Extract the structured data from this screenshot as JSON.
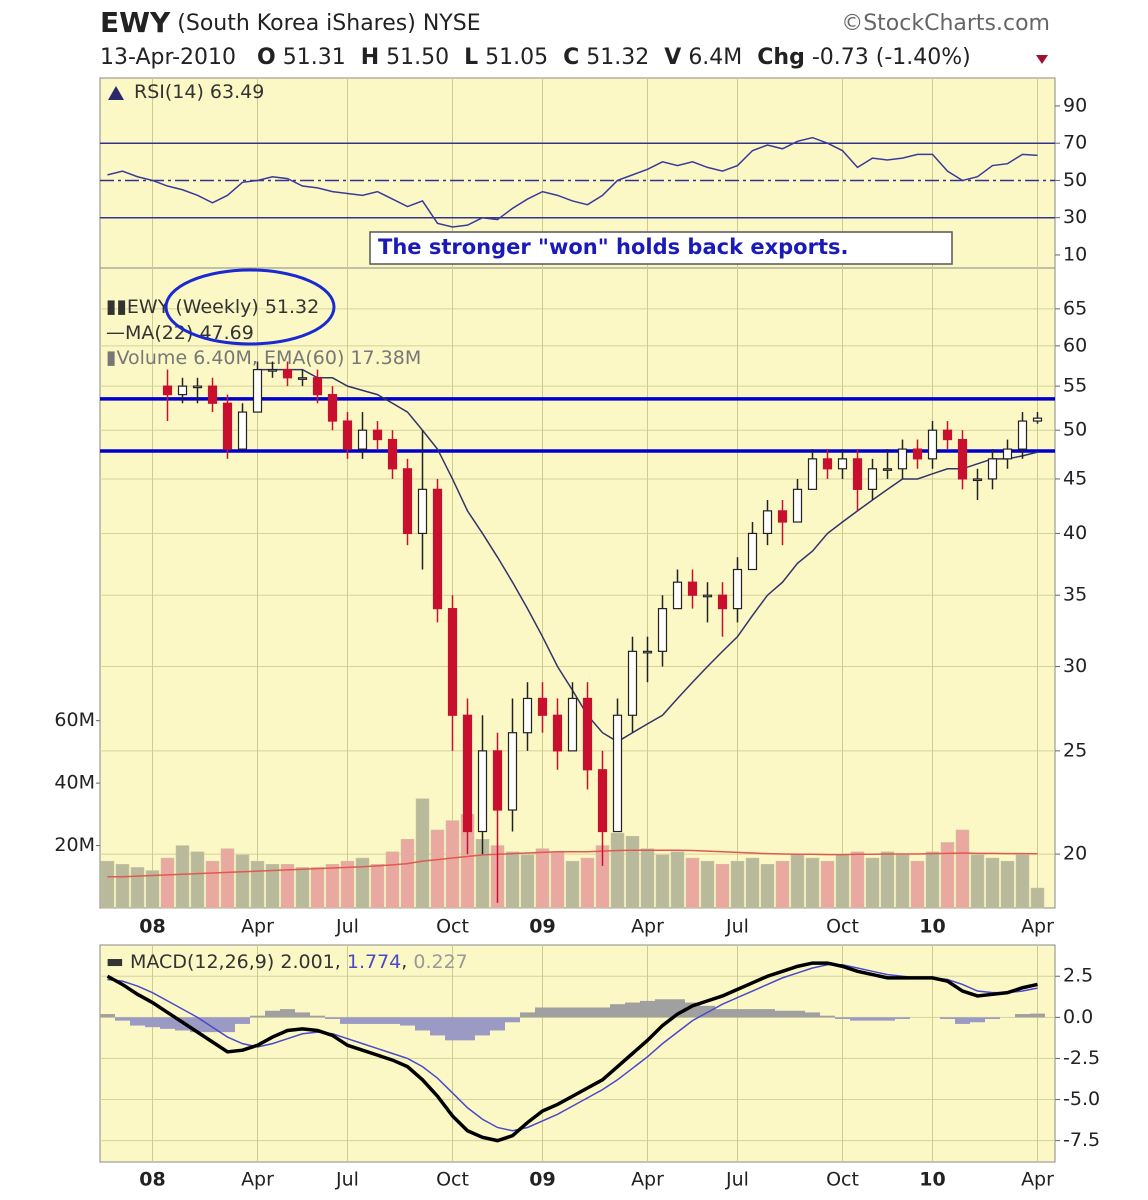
{
  "header": {
    "symbol": "EWY",
    "name": "(South Korea iShares)",
    "exchange": "NYSE",
    "source": "©StockCharts.com",
    "date": "13-Apr-2010",
    "quote": [
      [
        "O",
        "51.31"
      ],
      [
        "H",
        "51.50"
      ],
      [
        "L",
        "51.05"
      ],
      [
        "C",
        "51.32"
      ],
      [
        "V",
        "6.4M"
      ],
      [
        "Chg",
        "-0.73 (-1.40%)"
      ]
    ]
  },
  "chart_data": [
    {
      "type": "line",
      "label": "RSI(14)",
      "color": "#3a3a9a",
      "level_color": "#33338f",
      "annotation": "The stronger \"won\" holds back exports.",
      "values": [
        53,
        55,
        52,
        50,
        47,
        45,
        42,
        38,
        42,
        49,
        50,
        52,
        51,
        47,
        46,
        44,
        43,
        42,
        44,
        40,
        36,
        39,
        27,
        25,
        26,
        30,
        29,
        35,
        40,
        44,
        42,
        39,
        37,
        42,
        50,
        53,
        56,
        60,
        58,
        60,
        57,
        55,
        58,
        66,
        69,
        67,
        71,
        73,
        70,
        66,
        57,
        62,
        61,
        62,
        64,
        64,
        55,
        50,
        52,
        58,
        59,
        64,
        63.49
      ],
      "ylim": [
        3,
        105
      ],
      "yticks": [
        90,
        70,
        50,
        30,
        10
      ],
      "levels": [
        70,
        50,
        30
      ]
    },
    {
      "type": "candlestick",
      "label": "EWY",
      "period": "(Weekly)",
      "log": true,
      "grid": true,
      "up_color": "#ffffff",
      "down_color": "#c8102e",
      "categories": [
        null,
        null,
        null,
        "08",
        null,
        null,
        null,
        null,
        null,
        null,
        "Apr",
        null,
        null,
        null,
        null,
        null,
        "Jul",
        null,
        null,
        null,
        null,
        null,
        null,
        "Oct",
        null,
        null,
        null,
        null,
        null,
        "09",
        null,
        null,
        null,
        null,
        null,
        null,
        "Apr",
        null,
        null,
        null,
        null,
        null,
        "Jul",
        null,
        null,
        null,
        null,
        null,
        null,
        "Oct",
        null,
        null,
        null,
        null,
        null,
        "10",
        null,
        null,
        null,
        null,
        null,
        null,
        "Apr"
      ],
      "open": [
        null,
        null,
        null,
        null,
        55,
        54,
        55,
        55,
        53,
        48,
        52,
        57,
        57,
        56,
        56,
        54,
        51,
        48,
        50,
        49,
        46,
        40,
        44,
        34,
        27,
        21,
        25,
        22,
        26,
        28,
        27,
        25,
        28,
        24,
        21,
        27,
        31,
        31,
        34,
        36,
        35,
        35,
        34,
        37,
        40,
        42,
        41,
        44,
        47,
        46,
        47,
        44,
        46,
        46,
        48,
        47,
        50,
        49,
        45,
        45,
        47,
        48,
        51
      ],
      "high": [
        null,
        null,
        null,
        null,
        57,
        56,
        56,
        56,
        54,
        53,
        58,
        58,
        58,
        57,
        57,
        55,
        52,
        52,
        51,
        50,
        47,
        50,
        45,
        35,
        28,
        27,
        26,
        28,
        29,
        29,
        28,
        29,
        29,
        25,
        28,
        32,
        32,
        35,
        37,
        37,
        36,
        36,
        38,
        41,
        43,
        43,
        45,
        48,
        48,
        48,
        48,
        47,
        48,
        49,
        49,
        51,
        51,
        50,
        46,
        48,
        49,
        52,
        52
      ],
      "low": [
        null,
        null,
        null,
        null,
        51,
        53,
        53,
        52,
        47,
        48,
        52,
        56,
        55,
        55,
        53,
        50,
        47,
        47,
        48,
        45,
        39,
        37,
        33,
        25,
        20,
        20,
        18,
        21,
        25,
        26,
        24,
        25,
        23,
        19.5,
        21,
        26,
        29,
        30,
        34,
        34,
        33,
        32,
        33,
        37,
        39,
        39,
        41,
        44,
        45,
        45,
        42,
        43,
        45,
        45,
        46,
        46,
        48,
        44,
        43,
        44,
        46,
        47,
        50.7
      ],
      "close": [
        null,
        null,
        null,
        null,
        54,
        55,
        55,
        53,
        48,
        52,
        57,
        57,
        56,
        56,
        54,
        51,
        48,
        50,
        49,
        46,
        40,
        44,
        34,
        27,
        21,
        25,
        22,
        26,
        28,
        27,
        25,
        28,
        24,
        21,
        27,
        31,
        31,
        34,
        36,
        35,
        35,
        34,
        37,
        40,
        42,
        41,
        44,
        47,
        46,
        47,
        44,
        46,
        46,
        48,
        47,
        50,
        49,
        45,
        45,
        47,
        48,
        51,
        51.32
      ],
      "ma": {
        "name": "MA(22)",
        "color": "#33336a",
        "values": [
          null,
          null,
          null,
          null,
          null,
          null,
          null,
          null,
          null,
          null,
          57,
          57,
          57,
          57,
          56,
          56,
          55,
          54.5,
          54,
          53,
          52,
          50,
          48,
          45,
          42,
          40,
          38,
          36,
          34,
          32,
          30,
          28.5,
          27,
          26,
          25.5,
          26,
          26.5,
          27,
          28,
          29,
          30,
          31,
          32,
          33.5,
          35,
          36,
          37.5,
          38.5,
          40,
          41,
          42,
          43,
          44,
          45,
          45,
          45.5,
          46,
          46,
          46.5,
          47,
          47,
          47.3,
          47.69
        ]
      },
      "volume": {
        "name": "Volume",
        "legend_value": "6.40M",
        "up_color": "#b9b99c",
        "down_color": "#eaa9a0",
        "values": [
          15,
          14,
          13,
          12,
          16,
          20,
          18,
          15,
          19,
          17,
          15,
          14,
          14,
          13,
          13,
          14,
          15,
          16,
          14,
          18,
          22,
          35,
          25,
          28,
          30,
          22,
          20,
          18,
          17,
          19,
          18,
          15,
          16,
          20,
          24,
          23,
          19,
          17,
          18,
          16,
          15,
          14,
          15,
          16,
          14,
          15,
          17,
          16,
          15,
          17,
          18,
          16,
          18,
          17,
          15,
          18,
          21,
          25,
          17,
          16,
          15,
          17,
          6.4
        ],
        "ema": {
          "name": "EMA(60)",
          "legend_value": "17.38M",
          "color": "#e05a50",
          "values": [
            10,
            10,
            10.2,
            10.4,
            10.6,
            10.8,
            11,
            11.2,
            11.4,
            11.6,
            11.8,
            12,
            12.2,
            12.4,
            12.6,
            12.8,
            13,
            13.2,
            13.5,
            13.8,
            14.2,
            15,
            15.5,
            16,
            16.5,
            17,
            17.2,
            17.4,
            17.6,
            17.8,
            18,
            18,
            18,
            18.2,
            18.4,
            18.5,
            18.5,
            18.5,
            18.5,
            18.4,
            18.2,
            18,
            17.8,
            17.6,
            17.4,
            17.3,
            17.2,
            17.2,
            17.1,
            17.1,
            17.2,
            17.2,
            17.3,
            17.3,
            17.3,
            17.4,
            17.5,
            17.6,
            17.5,
            17.5,
            17.4,
            17.4,
            17.38
          ]
        }
      },
      "ylim": [
        17.8,
        71
      ],
      "yticks": [
        20,
        25,
        30,
        35,
        40,
        45,
        50,
        55,
        60,
        65
      ],
      "vlim": [
        0,
        205
      ],
      "vticks": [
        {
          "value": 20,
          "label": "20M"
        },
        {
          "value": 40,
          "label": "40M"
        },
        {
          "value": 60,
          "label": "60M"
        }
      ],
      "hlines": [
        53.5,
        47.8
      ],
      "hline_color": "#0000cc"
    },
    {
      "type": "macd",
      "grid": true,
      "macd": {
        "name": "MACD(12,26,9)",
        "color": "#000000",
        "values": [
          2.5,
          2.0,
          1.4,
          0.9,
          0.3,
          -0.3,
          -0.9,
          -1.5,
          -2.1,
          -2.0,
          -1.7,
          -1.2,
          -0.8,
          -0.7,
          -0.8,
          -1.1,
          -1.7,
          -2.0,
          -2.3,
          -2.6,
          -3.0,
          -3.8,
          -4.8,
          -6.0,
          -6.9,
          -7.3,
          -7.5,
          -7.2,
          -6.4,
          -5.7,
          -5.3,
          -4.8,
          -4.3,
          -3.8,
          -3.0,
          -2.2,
          -1.4,
          -0.5,
          0.2,
          0.7,
          1.0,
          1.3,
          1.7,
          2.1,
          2.5,
          2.8,
          3.1,
          3.3,
          3.3,
          3.1,
          2.8,
          2.6,
          2.4,
          2.4,
          2.4,
          2.4,
          2.2,
          1.6,
          1.3,
          1.4,
          1.5,
          1.8,
          2.001
        ]
      },
      "signal": {
        "color": "#4a4ac8",
        "values": [
          2.3,
          2.2,
          1.9,
          1.5,
          1.0,
          0.5,
          0,
          -0.6,
          -1.2,
          -1.6,
          -1.8,
          -1.6,
          -1.3,
          -1.0,
          -0.9,
          -1.0,
          -1.3,
          -1.6,
          -1.9,
          -2.2,
          -2.5,
          -3.0,
          -3.7,
          -4.6,
          -5.5,
          -6.2,
          -6.7,
          -6.9,
          -6.7,
          -6.3,
          -5.9,
          -5.4,
          -4.9,
          -4.4,
          -3.8,
          -3.1,
          -2.4,
          -1.6,
          -0.9,
          -0.2,
          0.3,
          0.8,
          1.2,
          1.6,
          2.0,
          2.4,
          2.7,
          3.0,
          3.2,
          3.2,
          3.0,
          2.8,
          2.6,
          2.5,
          2.4,
          2.4,
          2.3,
          2.0,
          1.6,
          1.5,
          1.5,
          1.6,
          1.774
        ]
      },
      "histogram": {
        "color": "#9a9ac4",
        "up_color": "#a0a0a0",
        "values": [
          0.2,
          -0.2,
          -0.5,
          -0.6,
          -0.7,
          -0.8,
          -0.9,
          -0.9,
          -0.9,
          -0.4,
          0.1,
          0.4,
          0.5,
          0.3,
          0.1,
          -0.1,
          -0.4,
          -0.4,
          -0.4,
          -0.4,
          -0.5,
          -0.8,
          -1.1,
          -1.4,
          -1.4,
          -1.1,
          -0.8,
          -0.3,
          0.3,
          0.6,
          0.6,
          0.6,
          0.6,
          0.6,
          0.8,
          0.9,
          1.0,
          1.1,
          1.1,
          0.9,
          0.7,
          0.5,
          0.5,
          0.5,
          0.5,
          0.4,
          0.4,
          0.3,
          0.1,
          -0.1,
          -0.2,
          -0.2,
          -0.2,
          -0.1,
          0,
          0,
          -0.1,
          -0.4,
          -0.3,
          -0.1,
          0,
          0.2,
          0.227
        ]
      },
      "ylim": [
        -8.8,
        4.4
      ],
      "yticks": [
        2.5,
        {
          "value": 0,
          "label": "0.0"
        },
        -2.5,
        {
          "value": -5,
          "label": "-5.0"
        },
        -7.5
      ]
    }
  ]
}
